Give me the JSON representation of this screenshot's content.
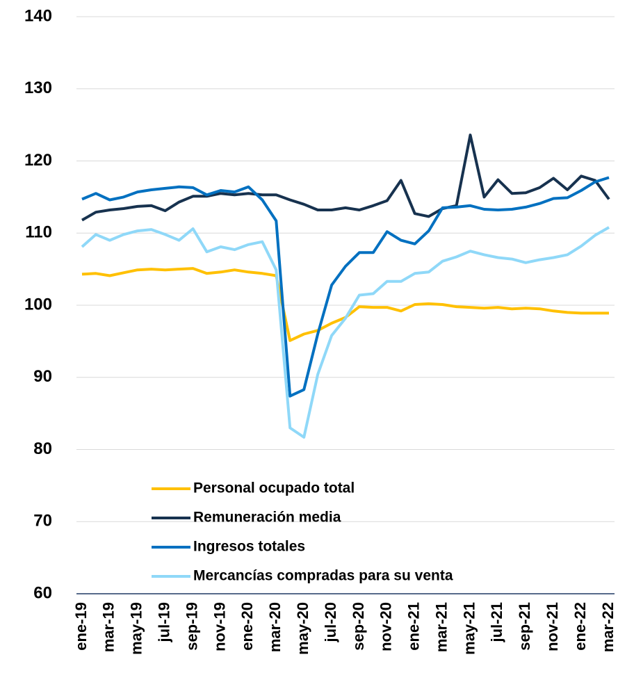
{
  "chart_data": {
    "type": "line",
    "categories": [
      "ene-19",
      null,
      "mar-19",
      null,
      "may-19",
      null,
      "jul-19",
      null,
      "sep-19",
      null,
      "nov-19",
      null,
      "ene-20",
      null,
      "mar-20",
      null,
      "may-20",
      null,
      "jul-20",
      null,
      "sep-20",
      null,
      "nov-20",
      null,
      "ene-21",
      null,
      "mar-21",
      null,
      "may-21",
      null,
      "jul-21",
      null,
      "sep-21",
      null,
      "nov-21",
      null,
      "ene-22",
      null,
      "mar-22"
    ],
    "series": [
      {
        "name": "Personal ocupado total",
        "color": "#FFC000",
        "values": [
          104.3,
          104.4,
          104.1,
          104.5,
          104.9,
          105.0,
          104.9,
          105.0,
          105.1,
          104.4,
          104.6,
          104.9,
          104.6,
          104.4,
          104.1,
          95.1,
          96.0,
          96.5,
          97.5,
          98.3,
          99.8,
          99.7,
          99.7,
          99.2,
          100.1,
          100.2,
          100.1,
          99.8,
          99.7,
          99.6,
          99.7,
          99.5,
          99.6,
          99.5,
          99.2,
          99.0,
          98.9,
          98.9,
          98.9
        ]
      },
      {
        "name": "Remuneración media",
        "color": "#17324F",
        "values": [
          111.8,
          112.9,
          113.2,
          113.4,
          113.7,
          113.8,
          113.1,
          114.3,
          115.1,
          115.1,
          115.5,
          115.3,
          115.5,
          115.3,
          115.3,
          114.6,
          114.0,
          113.2,
          113.2,
          113.5,
          113.2,
          113.8,
          114.5,
          117.3,
          112.7,
          112.3,
          113.4,
          113.8,
          123.6,
          115.0,
          117.4,
          115.5,
          115.6,
          116.3,
          117.6,
          116.0,
          117.9,
          117.3,
          114.7
        ]
      },
      {
        "name": "Ingresos totales",
        "color": "#0070C0",
        "values": [
          114.7,
          115.5,
          114.6,
          115.0,
          115.7,
          116.0,
          116.2,
          116.4,
          116.3,
          115.3,
          115.9,
          115.7,
          116.4,
          114.6,
          111.7,
          87.4,
          88.3,
          96.0,
          102.8,
          105.4,
          107.3,
          107.3,
          110.2,
          109.0,
          108.5,
          110.3,
          113.5,
          113.6,
          113.8,
          113.3,
          113.2,
          113.3,
          113.6,
          114.1,
          114.8,
          114.9,
          115.9,
          117.1,
          117.7
        ]
      },
      {
        "name": "Mercancías compradas para su venta",
        "color": "#8FD8F8",
        "values": [
          108.1,
          109.8,
          109.0,
          109.8,
          110.3,
          110.5,
          109.8,
          109.0,
          110.6,
          107.4,
          108.1,
          107.7,
          108.4,
          108.8,
          104.9,
          83.0,
          81.7,
          90.4,
          95.8,
          98.2,
          101.4,
          101.6,
          103.3,
          103.3,
          104.4,
          104.6,
          106.1,
          106.7,
          107.5,
          107.0,
          106.6,
          106.4,
          105.9,
          106.3,
          106.6,
          107.0,
          108.2,
          109.7,
          110.8
        ]
      }
    ],
    "ylim": [
      60,
      140
    ],
    "yticks": [
      60,
      70,
      80,
      90,
      100,
      110,
      120,
      130,
      140
    ],
    "grid": true,
    "legend": "lower left"
  }
}
